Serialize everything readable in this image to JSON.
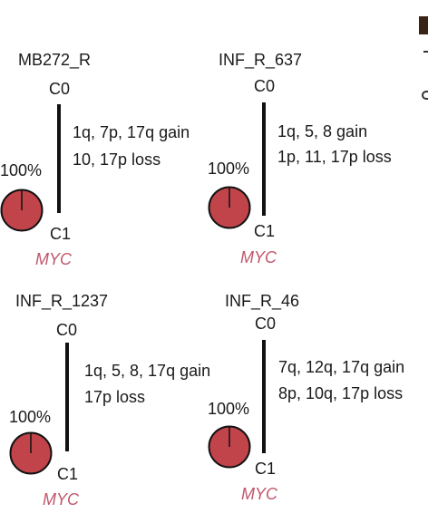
{
  "colors": {
    "clone_fill": "#c0444a",
    "gene_label": "#c0566a",
    "edge": "#111111"
  },
  "clone_fraction": 1.0,
  "trees": [
    {
      "sample": "MB272_R",
      "root": "C0",
      "leaf": "C1",
      "gains": "1q, 7p, 17q gain",
      "losses": "10, 17p loss",
      "percent": "100%",
      "gene": "MYC"
    },
    {
      "sample": "INF_R_637",
      "root": "C0",
      "leaf": "C1",
      "gains": "1q, 5, 8 gain",
      "losses": "1p, 11, 17p loss",
      "percent": "100%",
      "gene": "MYC"
    },
    {
      "sample": "INF_R_1237",
      "root": "C0",
      "leaf": "C1",
      "gains": "1q, 5, 8, 17q gain",
      "losses": "17p loss",
      "percent": "100%",
      "gene": "MYC"
    },
    {
      "sample": "INF_R_46",
      "root": "C0",
      "leaf": "C1",
      "gains": "7q, 12q, 17q gain",
      "losses": "8p, 10q, 17p loss",
      "percent": "100%",
      "gene": "MYC"
    }
  ]
}
